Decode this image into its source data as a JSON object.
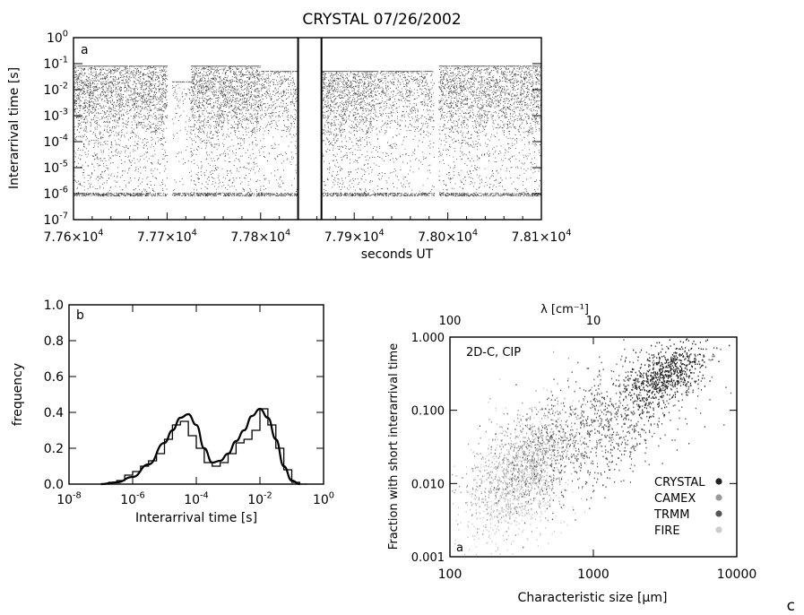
{
  "panel_label_c": "c",
  "chart_data": [
    {
      "type": "scatter",
      "title": "CRYSTAL 07/26/2002",
      "panel_label": "a",
      "xlabel": "seconds UT",
      "ylabel": "Interarrival time [s]",
      "xlim": [
        77600,
        78100
      ],
      "ylim": [
        1e-07,
        1
      ],
      "yscale": "log",
      "x_ticks": [
        "7.76×10",
        "7.77×10",
        "7.78×10",
        "7.79×10",
        "7.80×10",
        "7.81×10"
      ],
      "x_tick_exp": "4",
      "y_ticks": [
        {
          "m": "10",
          "e": "0"
        },
        {
          "m": "10",
          "e": "-1"
        },
        {
          "m": "10",
          "e": "-2"
        },
        {
          "m": "10",
          "e": "-3"
        },
        {
          "m": "10",
          "e": "-4"
        },
        {
          "m": "10",
          "e": "-5"
        },
        {
          "m": "10",
          "e": "-6"
        },
        {
          "m": "10",
          "e": "-7"
        }
      ],
      "vertical_lines_x": [
        77840,
        77865
      ],
      "data_segments": [
        {
          "x": [
            77600,
            77700
          ],
          "y_range": [
            8e-07,
            0.08
          ],
          "density": "high"
        },
        {
          "x": [
            77705,
            77725
          ],
          "y_range": [
            8e-07,
            0.02
          ],
          "density": "low"
        },
        {
          "x": [
            77725,
            77800
          ],
          "y_range": [
            8e-07,
            0.08
          ],
          "density": "high"
        },
        {
          "x": [
            77800,
            77840
          ],
          "y_range": [
            8e-07,
            0.05
          ],
          "density": "medium"
        },
        {
          "x": [
            77865,
            77920
          ],
          "y_range": [
            8e-07,
            0.05
          ],
          "density": "high"
        },
        {
          "x": [
            77920,
            77985
          ],
          "y_range": [
            8e-07,
            0.05
          ],
          "density": "medium"
        },
        {
          "x": [
            77990,
            78100
          ],
          "y_range": [
            8e-07,
            0.08
          ],
          "density": "high"
        }
      ]
    },
    {
      "type": "line",
      "panel_label": "b",
      "xlabel": "Interarrival time [s]",
      "ylabel": "frequency",
      "xlim": [
        1e-08,
        1
      ],
      "ylim": [
        0,
        1.0
      ],
      "xscale": "log",
      "x_ticks": [
        {
          "m": "10",
          "e": "-8"
        },
        {
          "m": "10",
          "e": "-6"
        },
        {
          "m": "10",
          "e": "-4"
        },
        {
          "m": "10",
          "e": "-2"
        },
        {
          "m": "10",
          "e": "0"
        }
      ],
      "y_ticks": [
        "0.0",
        "0.2",
        "0.4",
        "0.6",
        "0.8",
        "1.0"
      ],
      "series": [
        {
          "style": "step",
          "x_log10": [
            -7.0,
            -6.75,
            -6.5,
            -6.25,
            -6.0,
            -5.75,
            -5.5,
            -5.25,
            -5.0,
            -4.75,
            -4.5,
            -4.25,
            -4.0,
            -3.75,
            -3.5,
            -3.25,
            -3.0,
            -2.75,
            -2.5,
            -2.25,
            -2.0,
            -1.75,
            -1.5,
            -1.25,
            -1.0,
            -0.75
          ],
          "y": [
            0.0,
            0.01,
            0.02,
            0.05,
            0.07,
            0.1,
            0.13,
            0.17,
            0.25,
            0.33,
            0.35,
            0.27,
            0.2,
            0.12,
            0.1,
            0.12,
            0.17,
            0.23,
            0.25,
            0.3,
            0.42,
            0.33,
            0.2,
            0.08,
            0.01,
            0.0
          ]
        },
        {
          "style": "smooth",
          "x_log10": [
            -7.0,
            -6.5,
            -6.0,
            -5.5,
            -5.0,
            -4.75,
            -4.5,
            -4.25,
            -4.0,
            -3.75,
            -3.5,
            -3.25,
            -3.0,
            -2.75,
            -2.5,
            -2.25,
            -2.0,
            -1.75,
            -1.5,
            -1.25,
            -1.0,
            -0.75
          ],
          "y": [
            0.0,
            0.01,
            0.04,
            0.11,
            0.23,
            0.3,
            0.37,
            0.39,
            0.33,
            0.2,
            0.12,
            0.13,
            0.17,
            0.24,
            0.3,
            0.38,
            0.42,
            0.37,
            0.25,
            0.1,
            0.02,
            0.0
          ]
        }
      ]
    },
    {
      "type": "scatter",
      "panel_label": "a",
      "annotation": "2D-C, CIP",
      "xlabel": "Characteristic size [μm]",
      "ylabel": "Fraction with short interarrival time",
      "top_xlabel": "λ [cm⁻¹]",
      "xlim": [
        100,
        10000
      ],
      "ylim": [
        0.001,
        1.0
      ],
      "xscale": "log",
      "yscale": "log",
      "x_ticks": [
        "100",
        "1000",
        "10000"
      ],
      "top_x_ticks": [
        "100",
        "10"
      ],
      "y_ticks": [
        "1.000",
        "0.100",
        "0.010",
        "0.001"
      ],
      "series": [
        {
          "name": "CRYSTAL",
          "color": "#222222",
          "cluster": {
            "x_center": 3200,
            "y_center": 0.3,
            "x_spread_log": 0.14,
            "y_spread_log": 0.2
          }
        },
        {
          "name": "CAMEX",
          "color": "#9a9a9a",
          "cluster": {
            "x_center": 350,
            "y_center": 0.02,
            "x_spread_log": 0.2,
            "y_spread_log": 0.35
          }
        },
        {
          "name": "TRMM",
          "color": "#555555",
          "cluster": {
            "x_center": 1200,
            "y_center": 0.06,
            "x_spread_log": 0.3,
            "y_spread_log": 0.4
          }
        },
        {
          "name": "FIRE",
          "color": "#cccccc",
          "cluster": {
            "x_center": 280,
            "y_center": 0.01,
            "x_spread_log": 0.18,
            "y_spread_log": 0.4
          }
        }
      ]
    }
  ]
}
